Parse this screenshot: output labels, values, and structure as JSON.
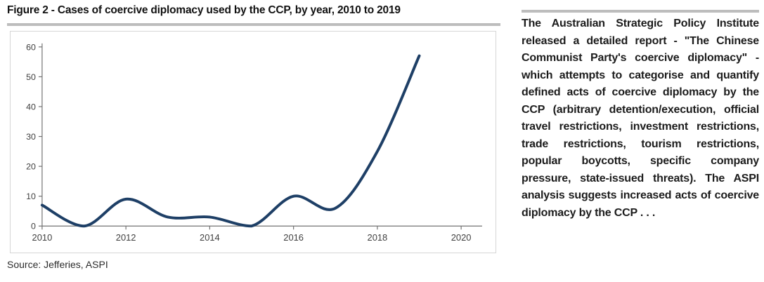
{
  "figure": {
    "title": "Figure 2 - Cases of coercive diplomacy used by the CCP, by year, 2010 to 2019",
    "source": "Source: Jefferies, ASPI"
  },
  "chart_data": {
    "type": "line",
    "title": "Figure 2 - Cases of coercive diplomacy used by the CCP, by year, 2010 to 2019",
    "x": [
      2010,
      2011,
      2012,
      2013,
      2014,
      2015,
      2016,
      2017,
      2018,
      2019
    ],
    "series": [
      {
        "name": "Cases of coercive diplomacy used by the CCP",
        "values": [
          7,
          0,
          9,
          3,
          3,
          0,
          10,
          6,
          25,
          57
        ]
      }
    ],
    "xlabel": "",
    "ylabel": "",
    "xlim": [
      2010,
      2020.5
    ],
    "ylim": [
      0,
      60
    ],
    "x_tick_labels": [
      "2010",
      "2012",
      "2014",
      "2016",
      "2018",
      "2020"
    ],
    "y_tick_values": [
      0,
      10,
      20,
      30,
      40,
      50,
      60
    ],
    "grid": false,
    "legend_position": "none",
    "smooth": true,
    "line_color": "#1e3f66",
    "axis_color": "#737373",
    "tick_label_color": "#3f3f3f"
  },
  "commentary": {
    "text": "The Australian Strategic Policy Institute released a detailed report - \"The Chinese Communist Party's coercive diplomacy\" - which attempts to categorise and quantify defined acts of coercive diplomacy by the CCP (arbitrary detention/execution, official travel restrictions, investment restrictions, trade restrictions, tourism restrictions, popular boycotts, specific company pressure, state-issued threats). The ASPI analysis suggests increased acts of coercive diplomacy by the CCP . . ."
  }
}
